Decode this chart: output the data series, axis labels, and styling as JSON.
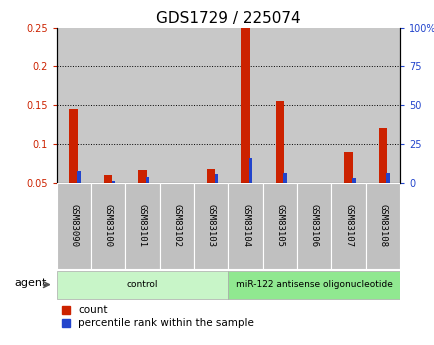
{
  "title": "GDS1729 / 225074",
  "samples": [
    "GSM83090",
    "GSM83100",
    "GSM83101",
    "GSM83102",
    "GSM83103",
    "GSM83104",
    "GSM83105",
    "GSM83106",
    "GSM83107",
    "GSM83108"
  ],
  "count_values": [
    0.145,
    0.06,
    0.067,
    0.05,
    0.068,
    0.25,
    0.156,
    0.05,
    0.09,
    0.121
  ],
  "percentile_values": [
    0.065,
    0.052,
    0.058,
    0.05,
    0.062,
    0.082,
    0.063,
    0.05,
    0.056,
    0.063
  ],
  "groups": [
    {
      "label": "control",
      "start": 0,
      "end": 5,
      "color": "#c8f5c8"
    },
    {
      "label": "miR-122 antisense oligonucleotide",
      "start": 5,
      "end": 10,
      "color": "#90e890"
    }
  ],
  "ylim_left": [
    0.05,
    0.25
  ],
  "yticks_left": [
    0.05,
    0.1,
    0.15,
    0.2,
    0.25
  ],
  "count_color": "#cc2200",
  "percentile_color": "#2244cc",
  "background_color": "#ffffff",
  "bar_bg_color": "#c8c8c8",
  "label_bg_color": "#c0c0c0",
  "title_fontsize": 11,
  "tick_fontsize": 7,
  "label_fontsize": 6.5,
  "legend_fontsize": 7.5,
  "agent_label": "agent"
}
